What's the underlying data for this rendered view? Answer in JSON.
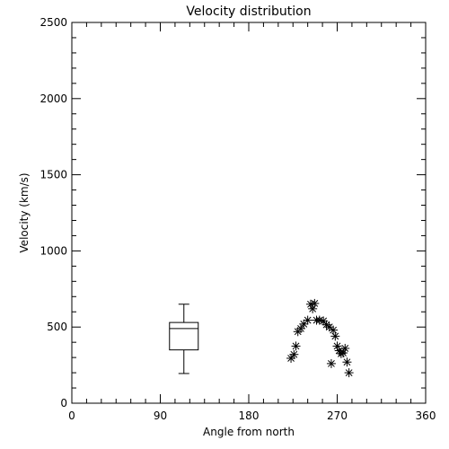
{
  "chart_data": {
    "type": "scatter",
    "title": "Velocity distribution",
    "xlabel": "Angle from north",
    "ylabel": "Velocity (km/s)",
    "xlim": [
      0,
      360
    ],
    "ylim": [
      0,
      2500
    ],
    "xticks": [
      0,
      90,
      180,
      270,
      360
    ],
    "xtick_labels": [
      "0",
      "90",
      "180",
      "270",
      "360"
    ],
    "yticks": [
      0,
      500,
      1000,
      1500,
      2000,
      2500
    ],
    "ytick_labels": [
      "0",
      "500",
      "1000",
      "1500",
      "2000",
      "2500"
    ],
    "grid": false,
    "marker": "asterisk",
    "points": [
      {
        "x": 223,
        "y": 295
      },
      {
        "x": 226,
        "y": 320
      },
      {
        "x": 228,
        "y": 375
      },
      {
        "x": 230,
        "y": 470
      },
      {
        "x": 233,
        "y": 490
      },
      {
        "x": 236,
        "y": 520
      },
      {
        "x": 240,
        "y": 545
      },
      {
        "x": 243,
        "y": 650
      },
      {
        "x": 245,
        "y": 620
      },
      {
        "x": 247,
        "y": 655
      },
      {
        "x": 249,
        "y": 545
      },
      {
        "x": 252,
        "y": 545
      },
      {
        "x": 256,
        "y": 540
      },
      {
        "x": 259,
        "y": 515
      },
      {
        "x": 262,
        "y": 500
      },
      {
        "x": 264,
        "y": 260
      },
      {
        "x": 266,
        "y": 480
      },
      {
        "x": 268,
        "y": 440
      },
      {
        "x": 270,
        "y": 375
      },
      {
        "x": 272,
        "y": 345
      },
      {
        "x": 274,
        "y": 325
      },
      {
        "x": 276,
        "y": 330
      },
      {
        "x": 278,
        "y": 360
      },
      {
        "x": 280,
        "y": 270
      },
      {
        "x": 282,
        "y": 200
      }
    ],
    "boxplot": {
      "x": 114,
      "whisker_low": 195,
      "q1": 350,
      "median": 490,
      "q3": 530,
      "whisker_high": 650
    }
  }
}
